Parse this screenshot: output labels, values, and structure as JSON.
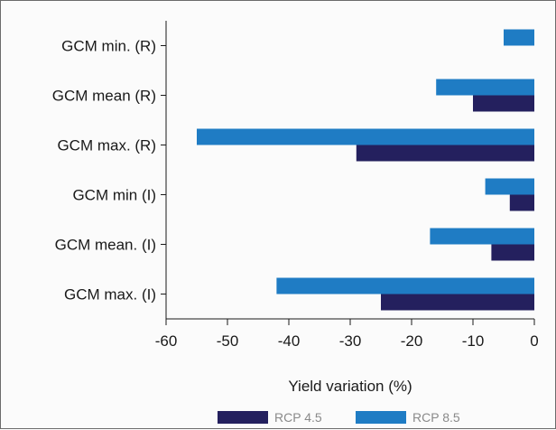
{
  "chart_data": {
    "type": "bar",
    "orientation": "horizontal",
    "categories": [
      "GCM min. (R)",
      "GCM mean (R)",
      "GCM max. (R)",
      "GCM min (I)",
      "GCM mean. (I)",
      "GCM max. (I)"
    ],
    "series": [
      {
        "name": "RCP 4.5",
        "color": "#24205e",
        "values": [
          null,
          -10,
          -29,
          -4,
          -7,
          -25
        ]
      },
      {
        "name": "RCP 8.5",
        "color": "#1f7cc4",
        "values": [
          -5,
          -16,
          -55,
          -8,
          -17,
          -42
        ]
      }
    ],
    "xlabel": "Yield variation (%)",
    "ylabel": "",
    "xlim": [
      -60,
      0
    ],
    "xticks": [
      -60,
      -50,
      -40,
      -30,
      -20,
      -10,
      0
    ],
    "grid": false,
    "legend_position": "bottom"
  }
}
